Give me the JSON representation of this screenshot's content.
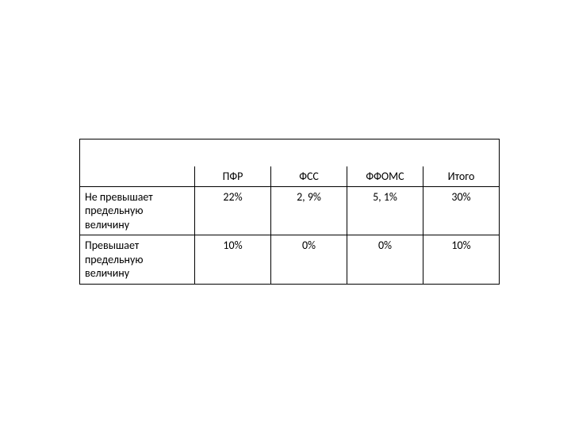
{
  "table": {
    "type": "table",
    "columns": [
      "ПФР",
      "ФСС",
      "ФФОМС",
      "Итого"
    ],
    "rows": [
      {
        "label": "Не превышает предельную величину",
        "cells": [
          "22%",
          "2, 9%",
          "5, 1%",
          "30%"
        ]
      },
      {
        "label": "Превышает предельную величину",
        "cells": [
          "10%",
          "0%",
          "0%",
          "10%"
        ]
      }
    ],
    "border_color": "#000000",
    "background_color": "#ffffff",
    "text_color": "#000000",
    "font_size": 14,
    "row_header_width": 145,
    "data_col_width": 96
  }
}
